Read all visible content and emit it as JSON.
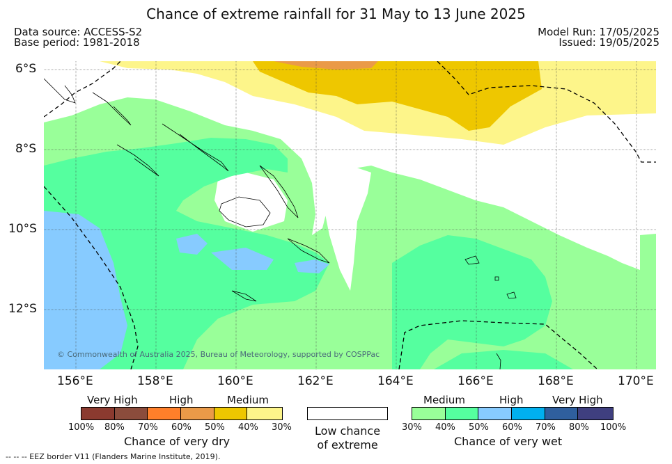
{
  "title": "Chance of extreme rainfall for 31 May to 13 June 2025",
  "data_source": "Data source: ACCESS-S2",
  "base_period": "Base period: 1981-2018",
  "model_run": "Model Run: 17/05/2025",
  "issued": "Issued: 19/05/2025",
  "lat_labels": [
    "6°S",
    "8°S",
    "10°S",
    "12°S"
  ],
  "lon_labels": [
    "156°E",
    "158°E",
    "160°E",
    "162°E",
    "164°E",
    "166°E",
    "168°E",
    "170°E"
  ],
  "copyright": "© Commonwealth of Australia 2025, Bureau of Meteorology, supported by COSPPac",
  "dry_legend": {
    "categories": [
      "Very High",
      "High",
      "Medium"
    ],
    "ticks": [
      "100%",
      "80%",
      "70%",
      "60%",
      "50%",
      "40%",
      "30%"
    ],
    "colors": [
      "#8b3a2f",
      "#8b4c3c",
      "#ff7f2a",
      "#ea9a48",
      "#eec700",
      "#fdf58a"
    ],
    "title": "Chance of very dry"
  },
  "low_chance_legend": {
    "line1": "Low chance",
    "line2": "of extreme",
    "color": "#ffffff"
  },
  "wet_legend": {
    "categories": [
      "Medium",
      "High",
      "Very High"
    ],
    "ticks": [
      "30%",
      "40%",
      "50%",
      "60%",
      "70%",
      "80%",
      "100%"
    ],
    "colors": [
      "#99ff99",
      "#55ff9f",
      "#87cbff",
      "#00b0ef",
      "#2f5f9e",
      "#3f3f7f"
    ],
    "title": "Chance of very wet"
  },
  "footnote": "--  --  -- EEZ border V11 (Flanders Marine Institute, 2019).",
  "map_colors": {
    "ocean_low": "#ffffff",
    "wet_medium": "#99ff99",
    "wet_high": "#55ff9f",
    "wet_high2": "#87cbff",
    "dry_medium": "#eec700",
    "dry_low": "#fdf58a",
    "dry_high": "#ea9a48"
  }
}
